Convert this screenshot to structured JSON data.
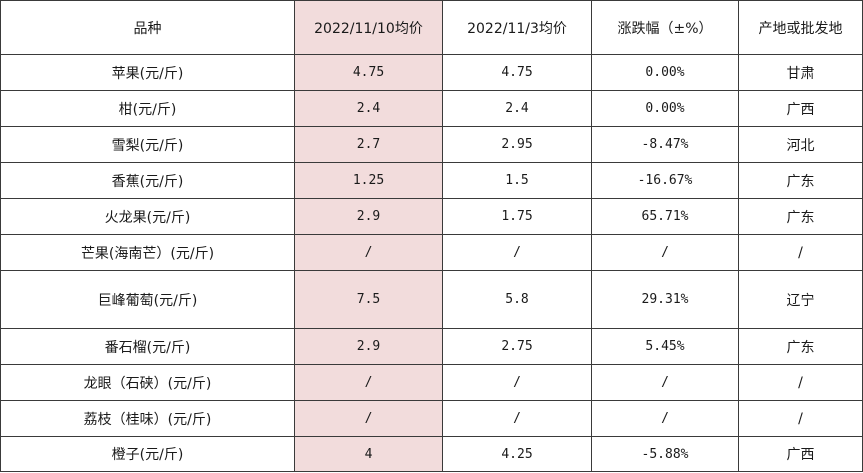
{
  "colors": {
    "highlight_column": "#f2dcdc",
    "border": "#3a3a3a"
  },
  "table": {
    "headers": [
      "品种",
      "2022/11/10均价",
      "2022/11/3均价",
      "涨跌幅（±%）",
      "产地或批发地"
    ],
    "rows": [
      [
        "苹果(元/斤)",
        "4.75",
        "4.75",
        "0.00%",
        "甘肃"
      ],
      [
        "柑(元/斤)",
        "2.4",
        "2.4",
        "0.00%",
        "广西"
      ],
      [
        "雪梨(元/斤)",
        "2.7",
        "2.95",
        "-8.47%",
        "河北"
      ],
      [
        "香蕉(元/斤)",
        "1.25",
        "1.5",
        "-16.67%",
        "广东"
      ],
      [
        "火龙果(元/斤)",
        "2.9",
        "1.75",
        "65.71%",
        "广东"
      ],
      [
        "芒果(海南芒）(元/斤)",
        "/",
        "/",
        "/",
        "/"
      ],
      [
        "巨峰葡萄(元/斤)",
        "7.5",
        "5.8",
        "29.31%",
        "辽宁"
      ],
      [
        "番石榴(元/斤)",
        "2.9",
        "2.75",
        "5.45%",
        "广东"
      ],
      [
        "龙眼（石硖）(元/斤)",
        "/",
        "/",
        "/",
        "/"
      ],
      [
        "荔枝（桂味）(元/斤)",
        "/",
        "/",
        "/",
        "/"
      ],
      [
        "橙子(元/斤)",
        "4",
        "4.25",
        "-5.88%",
        "广西"
      ]
    ]
  }
}
